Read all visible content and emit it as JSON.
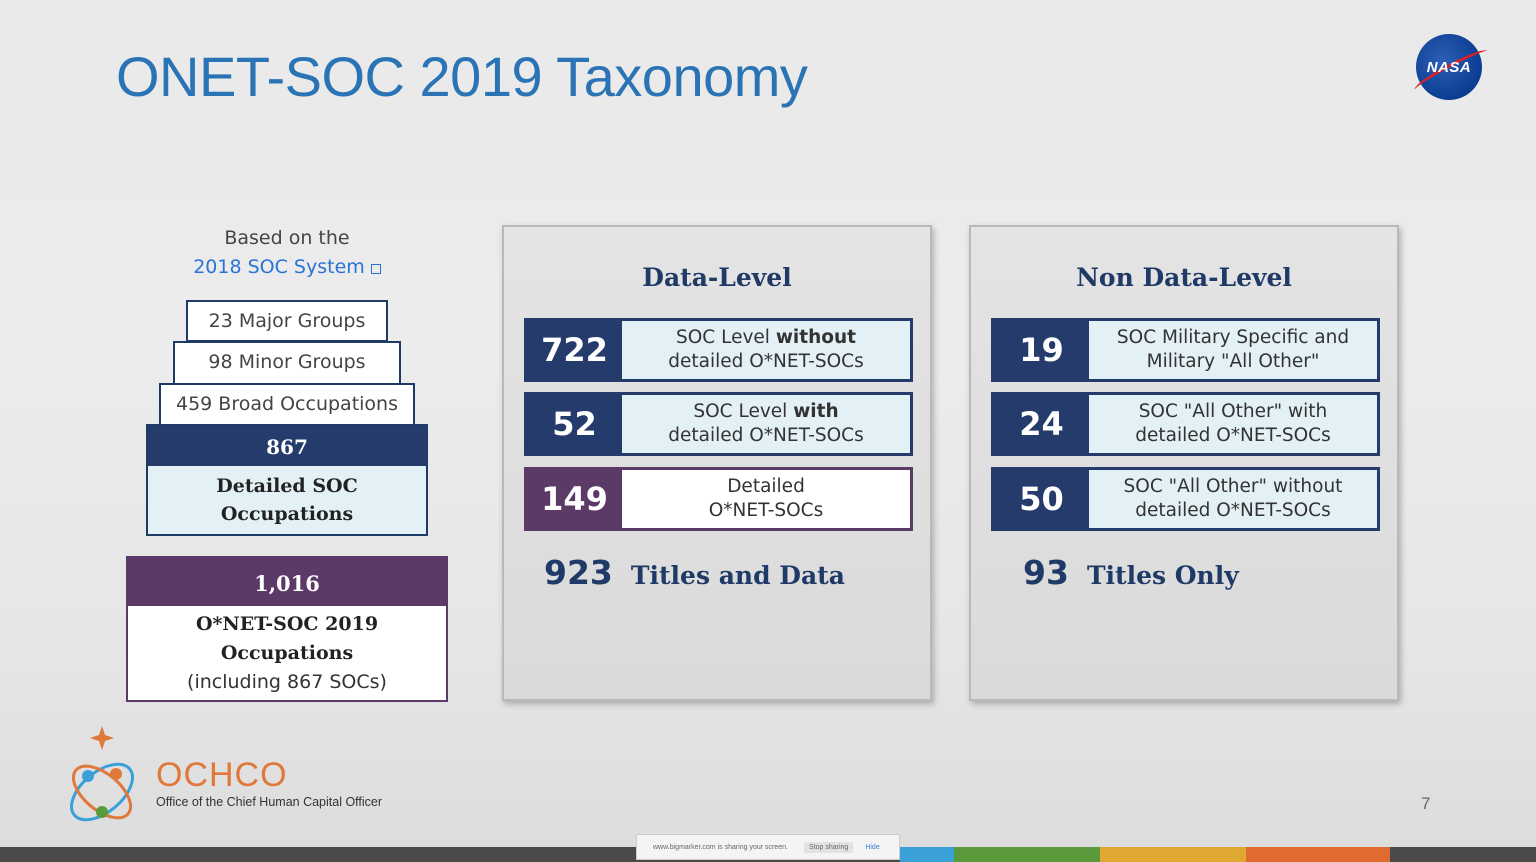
{
  "slide": {
    "title": "ONET-SOC 2019 Taxonomy",
    "logo_text": "NASA",
    "page_number": "7"
  },
  "pyramid": {
    "based_line1": "Based on the",
    "based_link": "2018 SOC System",
    "major": "23 Major Groups",
    "minor": "98 Minor Groups",
    "broad": "459 Broad Occupations",
    "detailed_num": "867",
    "detailed_l1": "Detailed SOC",
    "detailed_l2": "Occupations",
    "onet_num": "1,016",
    "onet_l1": "O*NET-SOC 2019",
    "onet_l2": "Occupations",
    "onet_l3": "(including 867 SOCs)"
  },
  "data_level": {
    "heading": "Data-Level",
    "rows": [
      {
        "num": "722",
        "l1a": "SOC Level ",
        "l1b": "without",
        "l2": "detailed O*NET-SOCs"
      },
      {
        "num": "52",
        "l1a": "SOC Level ",
        "l1b": "with",
        "l2": "detailed O*NET-SOCs"
      },
      {
        "num": "149",
        "l1": "Detailed",
        "l2": "O*NET-SOCs"
      }
    ],
    "total_num": "923",
    "total_label": "Titles and Data"
  },
  "non_data_level": {
    "heading": "Non Data-Level",
    "rows": [
      {
        "num": "19",
        "l1": "SOC Military Specific and",
        "l2": "Military \"All Other\""
      },
      {
        "num": "24",
        "l1": "SOC \"All Other\" with",
        "l2": "detailed O*NET-SOCs"
      },
      {
        "num": "50",
        "l1": "SOC \"All Other\" without",
        "l2": "detailed O*NET-SOCs"
      }
    ],
    "total_num": "93",
    "total_label": "Titles Only"
  },
  "footer": {
    "org": "OCHCO",
    "org_full": "Office of the Chief Human Capital Officer"
  },
  "screen_share": {
    "message": "www.bigmarker.com is sharing your screen.",
    "stop": "Stop sharing",
    "hide": "Hide"
  },
  "colors": {
    "title_blue": "#2a74b5",
    "navy": "#243b6b",
    "purple": "#5b3a67",
    "light_blue": "#e3f1f6",
    "ochco_orange": "#e0783a",
    "bar": [
      "#4a4a4a",
      "#3aa0d8",
      "#5a9a3a",
      "#e0a830",
      "#e06a30"
    ]
  }
}
